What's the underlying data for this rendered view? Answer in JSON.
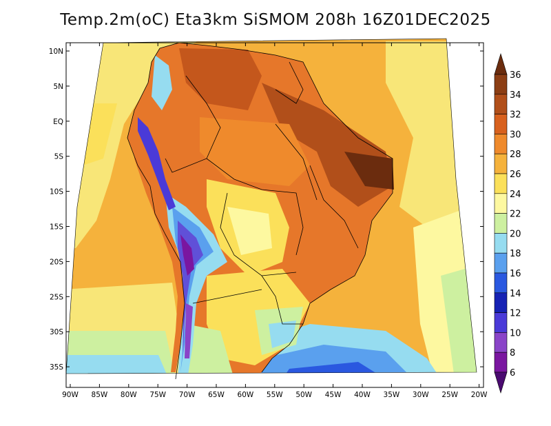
{
  "title": "Temp.2m(oC) Eta3km SiSMOM 208h 16Z01DEC2025",
  "map": {
    "variable": "2 m air temperature",
    "units": "°C",
    "region": "South America",
    "lon_labels": [
      "90W",
      "85W",
      "80W",
      "75W",
      "70W",
      "65W",
      "60W",
      "55W",
      "50W",
      "45W",
      "40W",
      "35W",
      "30W",
      "25W",
      "20W"
    ],
    "lat_labels": [
      "10N",
      "5N",
      "EQ",
      "5S",
      "10S",
      "15S",
      "20S",
      "25S",
      "30S",
      "35S"
    ],
    "field_zones": [
      {
        "name": "ocean-north-west",
        "color": "#f8e678"
      },
      {
        "name": "ocean-south-pacific-warm",
        "color": "#f5b23c"
      },
      {
        "name": "ocean-south-cold",
        "color": "#5aa0ee"
      },
      {
        "name": "continent-amazon",
        "color": "#e6772a"
      },
      {
        "name": "continent-northeast-hot",
        "color": "#a44f1e"
      },
      {
        "name": "andes-cold",
        "color": "#6050d8"
      },
      {
        "name": "south-brazil-mild",
        "color": "#cdf0a0"
      },
      {
        "name": "atlantic-warm",
        "color": "#f2bf4a"
      }
    ]
  },
  "colorbar": {
    "labels": [
      "36",
      "34",
      "32",
      "30",
      "28",
      "26",
      "24",
      "22",
      "20",
      "18",
      "16",
      "14",
      "12",
      "10",
      "8",
      "6"
    ],
    "colors": [
      "#6b2c0e",
      "#8c3e14",
      "#b14f1a",
      "#d8611e",
      "#ef8a2c",
      "#f5b23c",
      "#fbe05a",
      "#fdf8a0",
      "#cdf0a0",
      "#96dcf0",
      "#5aa0ee",
      "#2a58e0",
      "#1622b4",
      "#4a3ad8",
      "#8a44c8",
      "#7a16a0",
      "#4a0a70"
    ]
  }
}
